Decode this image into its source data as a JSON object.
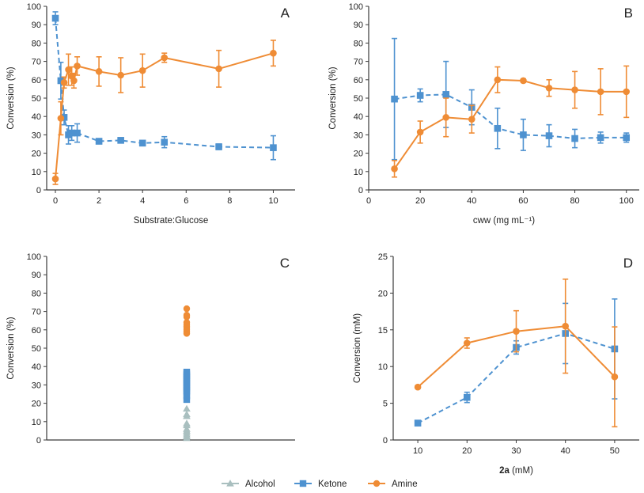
{
  "figure": {
    "legend": [
      {
        "name": "Alcohol",
        "color": "#a9bfbf",
        "marker": "triangle"
      },
      {
        "name": "Ketone",
        "color": "#4e92d0",
        "marker": "square"
      },
      {
        "name": "Amine",
        "color": "#ef8c35",
        "marker": "circle"
      }
    ]
  },
  "chart_data": [
    {
      "panel": "A",
      "type": "line",
      "title": "A",
      "xlabel": "Substrate:Glucose",
      "ylabel": "Conversion (%)",
      "xlim": [
        -0.4,
        11
      ],
      "ylim": [
        0,
        100
      ],
      "xticks": [
        0,
        2,
        4,
        6,
        8,
        10
      ],
      "yticks": [
        0,
        10,
        20,
        30,
        40,
        50,
        60,
        70,
        80,
        90,
        100
      ],
      "series": [
        {
          "name": "Ketone",
          "style": "dashed",
          "marker": "square",
          "color": "#4e92d0",
          "x": [
            0,
            0.25,
            0.4,
            0.6,
            0.75,
            1,
            2,
            3,
            4,
            5,
            7.5,
            10
          ],
          "y": [
            93.5,
            59.5,
            39.5,
            30,
            31,
            31,
            26.5,
            27,
            25.5,
            26,
            23.5,
            23
          ],
          "err": [
            3.5,
            10,
            4,
            5,
            4,
            5,
            1,
            1,
            1,
            3,
            1.5,
            6.5
          ]
        },
        {
          "name": "Amine",
          "style": "solid",
          "marker": "circle",
          "color": "#ef8c35",
          "x": [
            0,
            0.25,
            0.4,
            0.6,
            0.75,
            0.85,
            1,
            2,
            3,
            4,
            5,
            7.5,
            10
          ],
          "y": [
            6,
            39,
            58.5,
            65.5,
            62,
            59.5,
            67.5,
            64.5,
            62.5,
            65,
            72,
            66,
            74.5
          ],
          "err": [
            3,
            9,
            3,
            8.5,
            5,
            4,
            5,
            8,
            9.5,
            9,
            2.5,
            10,
            7
          ]
        }
      ]
    },
    {
      "panel": "B",
      "type": "line",
      "title": "B",
      "xlabel": "cww (mg mL⁻¹)",
      "ylabel": "Conversion (%)",
      "xlim": [
        0,
        105
      ],
      "ylim": [
        0,
        100
      ],
      "xticks": [
        0,
        20,
        40,
        60,
        80,
        100
      ],
      "yticks": [
        0,
        10,
        20,
        30,
        40,
        50,
        60,
        70,
        80,
        90,
        100
      ],
      "series": [
        {
          "name": "Ketone",
          "style": "dashed",
          "marker": "square",
          "color": "#4e92d0",
          "x": [
            10,
            20,
            30,
            40,
            50,
            60,
            70,
            80,
            90,
            100
          ],
          "y": [
            49.5,
            51.5,
            52,
            45,
            33.5,
            30,
            29.5,
            28,
            28.5,
            28.5
          ],
          "err": [
            33,
            3.5,
            18,
            9.5,
            11,
            8.5,
            6,
            5,
            3,
            2.5
          ]
        },
        {
          "name": "Amine",
          "style": "solid",
          "marker": "circle",
          "color": "#ef8c35",
          "x": [
            10,
            20,
            30,
            40,
            50,
            60,
            70,
            80,
            90,
            100
          ],
          "y": [
            11.5,
            31.5,
            39.5,
            38.5,
            60,
            59.5,
            55.5,
            54.5,
            53.5,
            53.5
          ],
          "err": [
            4.5,
            6,
            10.5,
            7.5,
            7,
            1,
            4.5,
            10,
            12.5,
            14
          ]
        }
      ]
    },
    {
      "panel": "C",
      "type": "scatter",
      "title": "C",
      "xlabel": "",
      "ylabel": "Conversion (%)",
      "ylim": [
        0,
        100
      ],
      "yticks": [
        0,
        10,
        20,
        30,
        40,
        50,
        60,
        70,
        80,
        90,
        100
      ],
      "series": [
        {
          "name": "Alcohol",
          "marker": "triangle",
          "color": "#a9bfbf",
          "y": [
            1,
            2,
            3,
            4,
            5,
            6,
            8,
            9,
            13,
            14,
            17
          ]
        },
        {
          "name": "Ketone",
          "marker": "square",
          "color": "#4e92d0",
          "y": [
            22,
            24,
            26,
            27,
            28,
            29,
            30,
            31,
            32,
            33,
            34,
            35,
            36,
            37
          ]
        },
        {
          "name": "Amine",
          "marker": "circle",
          "color": "#ef8c35",
          "y": [
            58,
            59,
            60,
            61,
            62,
            63,
            64,
            67,
            68,
            71.5
          ]
        }
      ]
    },
    {
      "panel": "D",
      "type": "line",
      "title": "D",
      "xlabel_bold": "2a",
      "xlabel_rest": " (mM)",
      "ylabel": "Conversion (mM)",
      "xlim": [
        5,
        55
      ],
      "ylim": [
        0,
        25
      ],
      "xticks": [
        10,
        20,
        30,
        40,
        50
      ],
      "yticks": [
        0,
        5,
        10,
        15,
        20,
        25
      ],
      "series": [
        {
          "name": "Ketone",
          "style": "dashed",
          "marker": "square",
          "color": "#4e92d0",
          "x": [
            10,
            20,
            30,
            40,
            50
          ],
          "y": [
            2.3,
            5.8,
            12.6,
            14.5,
            12.4
          ],
          "err": [
            0.2,
            0.7,
            0.9,
            4.1,
            6.8
          ]
        },
        {
          "name": "Amine",
          "style": "solid",
          "marker": "circle",
          "color": "#ef8c35",
          "x": [
            10,
            20,
            30,
            40,
            50
          ],
          "y": [
            7.2,
            13.2,
            14.8,
            15.5,
            8.6
          ],
          "err": [
            0.2,
            0.7,
            2.8,
            6.4,
            6.8
          ]
        }
      ]
    }
  ]
}
